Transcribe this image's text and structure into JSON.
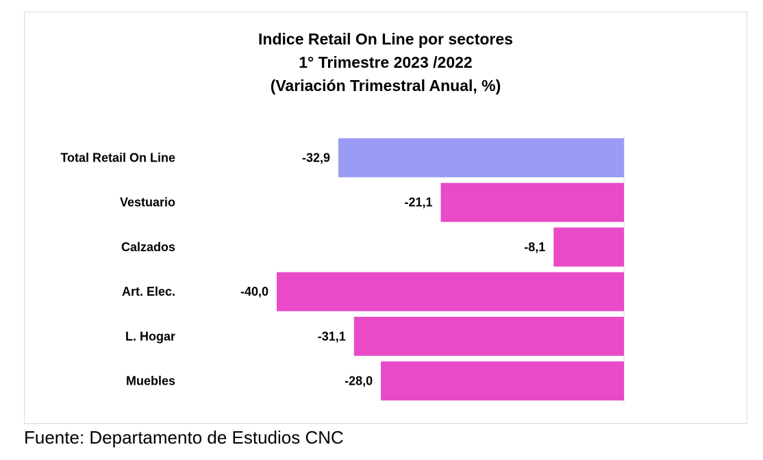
{
  "chart_data": {
    "type": "bar",
    "orientation": "horizontal",
    "title": [
      "Indice Retail On Line por sectores",
      "1° Trimestre 2023 /2022",
      "(Variación Trimestral Anual, %)"
    ],
    "categories": [
      "Total Retail On Line",
      "Vestuario",
      "Calzados",
      "Art. Elec.",
      "L. Hogar",
      "Muebles"
    ],
    "values": [
      -32.9,
      -21.1,
      -8.1,
      -40.0,
      -31.1,
      -28.0
    ],
    "value_labels": [
      "-32,9",
      "-21,1",
      "-8,1",
      "-40,0",
      "-31,1",
      "-28,0"
    ],
    "colors": [
      "#9b9bf5",
      "#e84ac8",
      "#e84ac8",
      "#e84ac8",
      "#e84ac8",
      "#e84ac8"
    ],
    "xlim": [
      -40,
      0
    ],
    "grid": false,
    "legend": "none"
  },
  "source": "Fuente: Departamento de Estudios CNC"
}
